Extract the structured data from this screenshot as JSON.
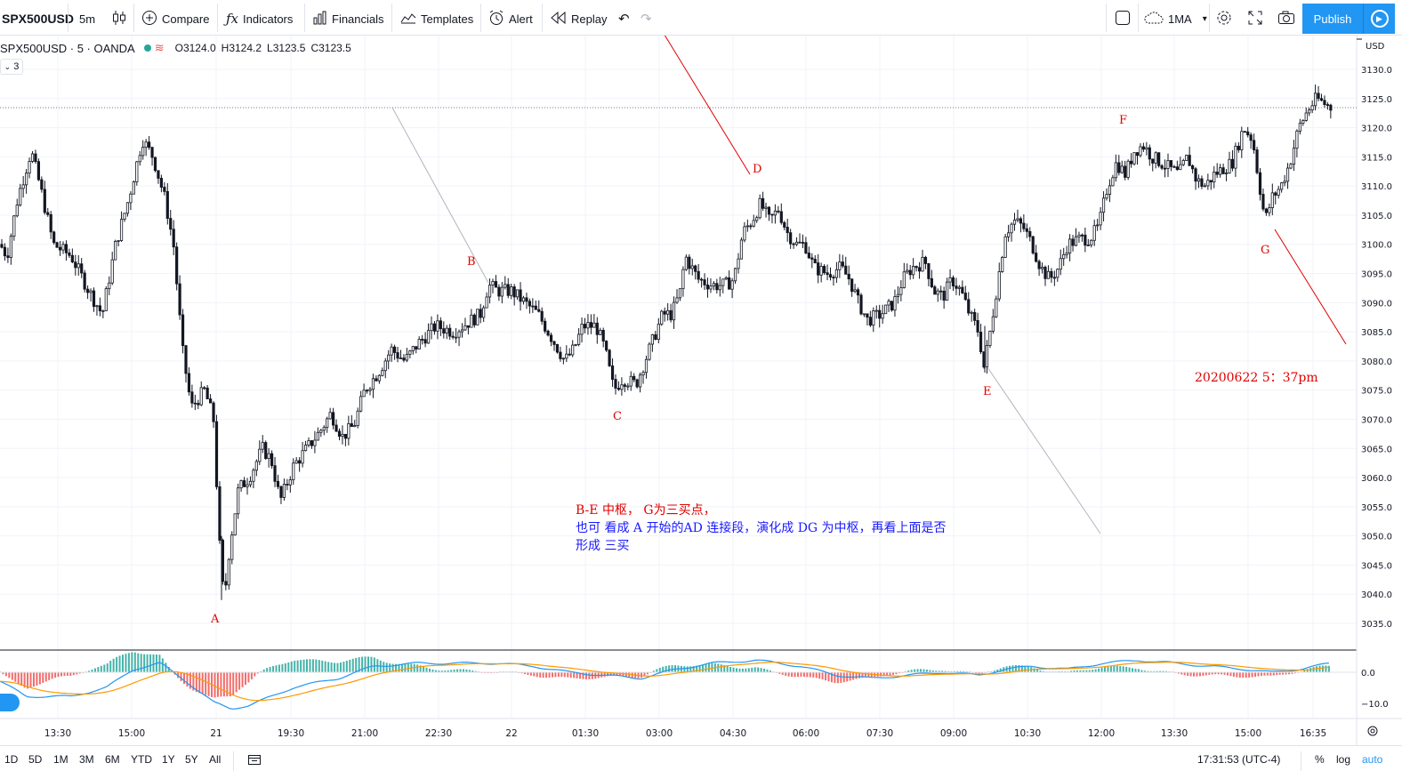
{
  "toolbar": {
    "symbol": "SPX500USD",
    "interval": "5m",
    "compare": "Compare",
    "indicators": "Indicators",
    "financials": "Financials",
    "templates": "Templates",
    "alert": "Alert",
    "replay": "Replay",
    "layout_name": "1MA",
    "publish": "Publish"
  },
  "legend": {
    "symbol": "SPX500USD · 5 · OANDA",
    "open": "O3124.0",
    "high": "H3124.2",
    "low": "L3123.5",
    "close": "C3123.5",
    "collapse": "3"
  },
  "price_axis": {
    "currency": "USD",
    "ticks": [
      "3130.0",
      "3125.0",
      "3120.0",
      "3115.0",
      "3110.0",
      "3105.0",
      "3100.0",
      "3095.0",
      "3090.0",
      "3085.0",
      "3080.0",
      "3075.0",
      "3070.0",
      "3065.0",
      "3060.0",
      "3055.0",
      "3050.0",
      "3045.0",
      "3040.0",
      "3035.0"
    ],
    "indicator_ticks": [
      "0.0",
      "−10.0"
    ]
  },
  "time_axis": [
    "13:30",
    "15:00",
    "21",
    "19:30",
    "21:00",
    "22:30",
    "22",
    "01:30",
    "03:00",
    "04:30",
    "06:00",
    "07:30",
    "09:00",
    "10:30",
    "12:00",
    "13:30",
    "15:00",
    "16:35"
  ],
  "annotations": {
    "points": [
      "A",
      "B",
      "C",
      "D",
      "E",
      "F",
      "G"
    ],
    "line1": "B-E 中枢， G为三买点，",
    "line2": "也可 看成 A 开始的AD 连接段，演化成 DG 为中枢，再看上面是否",
    "line3": "形成 三买",
    "timestamp": "20200622 5：37pm"
  },
  "bottom_bar": {
    "ranges": [
      "1D",
      "5D",
      "1M",
      "3M",
      "6M",
      "YTD",
      "1Y",
      "5Y",
      "All"
    ],
    "clock": "17:31:53 (UTC-4)",
    "percent": "%",
    "log": "log",
    "auto": "auto"
  },
  "colors": {
    "up": "#26a69a",
    "down": "#ef5350",
    "candle": "#131722",
    "accent": "#2196f3",
    "macd": "#2196f3",
    "signal": "#ff9800",
    "annotation_red": "#e00000",
    "annotation_blue": "#1a1aff"
  },
  "chart_data": {
    "type": "candlestick",
    "price_range": [
      3032,
      3135
    ],
    "last_price": 3123.5,
    "key_points": [
      {
        "label": "A",
        "price": 3039
      },
      {
        "label": "B",
        "price": 3093
      },
      {
        "label": "C",
        "price": 3074
      },
      {
        "label": "D",
        "price": 3108
      },
      {
        "label": "E",
        "price": 3078
      },
      {
        "label": "F",
        "price": 3118
      },
      {
        "label": "G",
        "price": 3104
      }
    ]
  }
}
